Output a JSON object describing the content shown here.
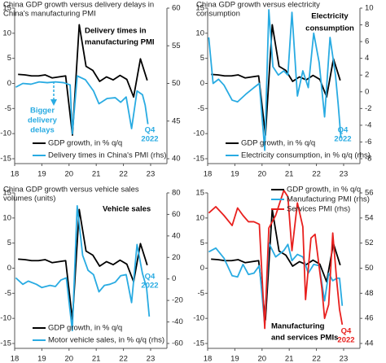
{
  "chart_data": [
    {
      "type": "line",
      "title": [
        "China GDP growth versus delivery delays in",
        "China's manufacturing PMI"
      ],
      "xlim": [
        2018,
        2023.6
      ],
      "xticks": [
        {
          "value": 2018,
          "label": "18"
        },
        {
          "value": 2019,
          "label": "19"
        },
        {
          "value": 2020,
          "label": "20"
        },
        {
          "value": 2021,
          "label": "21"
        },
        {
          "value": 2022,
          "label": "22"
        },
        {
          "value": 2023,
          "label": "23"
        }
      ],
      "ylim": [
        -15,
        15
      ],
      "yticks": [
        -15,
        -10,
        -5,
        0,
        5,
        10,
        15
      ],
      "y2lim": [
        40,
        60
      ],
      "y2ticks": [
        40,
        45,
        50,
        55,
        60
      ],
      "series": [
        {
          "name": "GDP growth, in % q/q",
          "color": "#000000",
          "x": [
            2018.125,
            2018.375,
            2018.625,
            2018.875,
            2019.125,
            2019.375,
            2019.625,
            2019.875,
            2020.125,
            2020.375,
            2020.625,
            2020.875,
            2021.125,
            2021.375,
            2021.625,
            2021.875,
            2022.125,
            2022.375,
            2022.625,
            2022.875
          ],
          "values": [
            1.8,
            1.7,
            1.5,
            1.5,
            1.7,
            1.1,
            1.3,
            1.5,
            -10.3,
            11.7,
            3.4,
            2.6,
            0.4,
            1.3,
            0.7,
            1.6,
            0.8,
            -2.7,
            4.9,
            0.6
          ]
        },
        {
          "name": "Delivery times in China's PMI (rhs)",
          "color": "#29abe2",
          "axis": "y2",
          "x": [
            2018.04,
            2018.3,
            2018.6,
            2018.9,
            2019.2,
            2019.5,
            2019.8,
            2020.04,
            2020.12,
            2020.3,
            2020.6,
            2020.9,
            2021.1,
            2021.4,
            2021.7,
            2021.9,
            2022.1,
            2022.3,
            2022.5,
            2022.7,
            2022.8,
            2022.9
          ],
          "values": [
            49.5,
            50.0,
            49.9,
            50.2,
            50.1,
            50.2,
            50.1,
            49.8,
            43.3,
            51.0,
            50.5,
            49.0,
            47.3,
            48.0,
            48.1,
            47.5,
            48.2,
            44.0,
            49.0,
            48.5,
            47.1,
            44.6
          ]
        }
      ],
      "annotations": [
        {
          "lines": [
            "Delivery times in",
            "manufacturing PMI"
          ],
          "color": "#000000"
        },
        {
          "lines": [
            "Bigger",
            "delivery",
            "delays"
          ],
          "color": "#29abe2"
        },
        {
          "lines": [
            "Q4",
            "2022"
          ],
          "color": "#29abe2"
        }
      ]
    },
    {
      "type": "line",
      "title": [
        "China GDP growth versus electricity",
        "consumption"
      ],
      "xlim": [
        2018,
        2023.6
      ],
      "xticks": [
        {
          "value": 2018,
          "label": "18"
        },
        {
          "value": 2019,
          "label": "19"
        },
        {
          "value": 2020,
          "label": "20"
        },
        {
          "value": 2021,
          "label": "21"
        },
        {
          "value": 2022,
          "label": "22"
        },
        {
          "value": 2023,
          "label": "23"
        }
      ],
      "ylim": [
        -15,
        15
      ],
      "yticks": [
        -15,
        -10,
        -5,
        0,
        5,
        10,
        15
      ],
      "y2lim": [
        -8,
        10
      ],
      "y2ticks": [
        -8,
        -6,
        -4,
        -2,
        0,
        2,
        4,
        6,
        8,
        10
      ],
      "series": [
        {
          "name": "GDP growth, in % q/q",
          "color": "#000000",
          "x": [
            2018.125,
            2018.375,
            2018.625,
            2018.875,
            2019.125,
            2019.375,
            2019.625,
            2019.875,
            2020.125,
            2020.375,
            2020.625,
            2020.875,
            2021.125,
            2021.375,
            2021.625,
            2021.875,
            2022.125,
            2022.375,
            2022.625,
            2022.875
          ],
          "values": [
            1.8,
            1.7,
            1.5,
            1.5,
            1.7,
            1.1,
            1.3,
            1.5,
            -10.3,
            11.7,
            3.4,
            2.6,
            0.4,
            1.3,
            0.7,
            1.6,
            0.8,
            -2.7,
            4.9,
            0.6
          ]
        },
        {
          "name": "Electricity consumption, in % q/q (rhs)",
          "color": "#29abe2",
          "axis": "y2",
          "x": [
            2018.04,
            2018.2,
            2018.4,
            2018.6,
            2018.9,
            2019.1,
            2019.4,
            2019.7,
            2019.9,
            2020.1,
            2020.25,
            2020.4,
            2020.6,
            2020.8,
            2020.95,
            2021.1,
            2021.3,
            2021.5,
            2021.7,
            2021.9,
            2022.1,
            2022.3,
            2022.5,
            2022.7,
            2022.8,
            2022.9
          ],
          "values": [
            6.5,
            1.0,
            1.5,
            0.8,
            -1.0,
            -1.2,
            -0.3,
            0.5,
            1.0,
            -7.0,
            9.8,
            3.0,
            2.0,
            2.5,
            2.0,
            9.5,
            -0.5,
            2.5,
            0.5,
            7.0,
            3.5,
            -3.0,
            6.5,
            2.0,
            -1.5,
            -5.5
          ]
        }
      ],
      "annotations": [
        {
          "lines": [
            "Electricity",
            "consumption"
          ],
          "color": "#000000"
        },
        {
          "lines": [
            "Q4",
            "2022"
          ],
          "color": "#29abe2"
        }
      ]
    },
    {
      "type": "line",
      "title": [
        "China GDP growth versus vehicle sales",
        "volumes (units)"
      ],
      "xlim": [
        2018,
        2023.6
      ],
      "xticks": [
        {
          "value": 2018,
          "label": "18"
        },
        {
          "value": 2019,
          "label": "19"
        },
        {
          "value": 2020,
          "label": "20"
        },
        {
          "value": 2021,
          "label": "21"
        },
        {
          "value": 2022,
          "label": "22"
        },
        {
          "value": 2023,
          "label": "23"
        }
      ],
      "ylim": [
        -15,
        15
      ],
      "yticks": [
        -15,
        -10,
        -5,
        0,
        5,
        10,
        15
      ],
      "y2lim": [
        -60,
        80
      ],
      "y2ticks": [
        -60,
        -40,
        -20,
        0,
        20,
        40,
        60,
        80
      ],
      "series": [
        {
          "name": "GDP growth, in % q/q",
          "color": "#000000",
          "x": [
            2018.125,
            2018.375,
            2018.625,
            2018.875,
            2019.125,
            2019.375,
            2019.625,
            2019.875,
            2020.125,
            2020.375,
            2020.625,
            2020.875,
            2021.125,
            2021.375,
            2021.625,
            2021.875,
            2022.125,
            2022.375,
            2022.625,
            2022.875
          ],
          "values": [
            1.8,
            1.7,
            1.5,
            1.5,
            1.7,
            1.1,
            1.3,
            1.5,
            -10.3,
            11.7,
            3.4,
            2.6,
            0.4,
            1.3,
            0.7,
            1.6,
            0.8,
            -2.7,
            4.9,
            0.6
          ]
        },
        {
          "name": "Motor vehicle sales, in % q/q (rhs)",
          "color": "#29abe2",
          "axis": "y2",
          "x": [
            2018.04,
            2018.3,
            2018.5,
            2018.8,
            2019.0,
            2019.3,
            2019.5,
            2019.7,
            2019.9,
            2020.12,
            2020.3,
            2020.5,
            2020.7,
            2020.9,
            2021.1,
            2021.3,
            2021.5,
            2021.7,
            2021.9,
            2022.1,
            2022.3,
            2022.5,
            2022.7,
            2022.85,
            2022.95
          ],
          "values": [
            1,
            -5,
            -2,
            -5,
            -8,
            -6,
            -7,
            -1,
            1,
            -48,
            68,
            22,
            8,
            4,
            -12,
            -6,
            -5,
            -3,
            3,
            4,
            -22,
            32,
            5,
            -8,
            -35
          ]
        }
      ],
      "annotations": [
        {
          "lines": [
            "Vehicle sales"
          ],
          "color": "#000000"
        },
        {
          "lines": [
            "Q4",
            "2022"
          ],
          "color": "#29abe2"
        }
      ]
    },
    {
      "type": "line",
      "xlim": [
        2018,
        2023.6
      ],
      "xticks": [
        {
          "value": 2018,
          "label": "18"
        },
        {
          "value": 2019,
          "label": "19"
        },
        {
          "value": 2020,
          "label": "20"
        },
        {
          "value": 2021,
          "label": "21"
        },
        {
          "value": 2022,
          "label": "22"
        },
        {
          "value": 2023,
          "label": "23"
        }
      ],
      "ylim": [
        -15,
        15
      ],
      "yticks": [
        -15,
        -10,
        -5,
        0,
        5,
        10,
        15
      ],
      "y2lim": [
        44,
        56
      ],
      "y2ticks": [
        44,
        46,
        48,
        50,
        52,
        54,
        56
      ],
      "series": [
        {
          "name": "GDP growth, in % q/q",
          "color": "#000000",
          "x": [
            2018.125,
            2018.375,
            2018.625,
            2018.875,
            2019.125,
            2019.375,
            2019.625,
            2019.875,
            2020.125,
            2020.375,
            2020.625,
            2020.875,
            2021.125,
            2021.375,
            2021.625,
            2021.875,
            2022.125,
            2022.375,
            2022.625,
            2022.875
          ],
          "values": [
            1.8,
            1.7,
            1.5,
            1.5,
            1.7,
            1.1,
            1.3,
            1.5,
            -10.3,
            11.7,
            3.4,
            2.6,
            0.4,
            1.3,
            0.7,
            1.6,
            0.8,
            -2.7,
            4.9,
            0.6
          ]
        },
        {
          "name": "Manufacturing PMI (rhs)",
          "color": "#29abe2",
          "axis": "y2",
          "x": [
            2018.04,
            2018.3,
            2018.6,
            2018.9,
            2019.1,
            2019.3,
            2019.5,
            2019.7,
            2019.9,
            2020.1,
            2020.25,
            2020.5,
            2020.8,
            2020.95,
            2021.1,
            2021.3,
            2021.5,
            2021.7,
            2021.9,
            2022.1,
            2022.3,
            2022.45,
            2022.6,
            2022.75,
            2022.85,
            2022.95
          ],
          "values": [
            51.3,
            51.6,
            50.8,
            49.4,
            49.3,
            50.3,
            49.5,
            49.6,
            50.2,
            45.5,
            52.0,
            50.9,
            51.4,
            51.9,
            50.6,
            51.1,
            50.9,
            49.6,
            50.3,
            50.2,
            47.4,
            49.6,
            49.0,
            49.2,
            49.2,
            47.0
          ]
        },
        {
          "name": "Services PMI (rhs)",
          "color": "#e8201e",
          "axis": "y2",
          "x": [
            2018.04,
            2018.3,
            2018.6,
            2018.9,
            2019.1,
            2019.3,
            2019.5,
            2019.7,
            2019.9,
            2020.1,
            2020.25,
            2020.5,
            2020.8,
            2020.95,
            2021.1,
            2021.3,
            2021.5,
            2021.6,
            2021.8,
            2021.95,
            2022.2,
            2022.3,
            2022.45,
            2022.6,
            2022.75,
            2022.85,
            2022.95
          ],
          "values": [
            54.4,
            54.9,
            54.2,
            53.4,
            54.8,
            54.2,
            53.7,
            53.7,
            53.5,
            45.2,
            53.2,
            54.2,
            56.2,
            55.7,
            51.4,
            55.2,
            53.3,
            47.5,
            52.4,
            52.7,
            48.4,
            46.0,
            47.1,
            52.8,
            48.9,
            46.7,
            45.5
          ]
        }
      ],
      "annotations": [
        {
          "lines": [
            "Manufacturing",
            "and services PMIs"
          ],
          "color": "#000000"
        },
        {
          "lines": [
            "Q4",
            "2022"
          ],
          "color": "#e8201e"
        }
      ]
    }
  ]
}
